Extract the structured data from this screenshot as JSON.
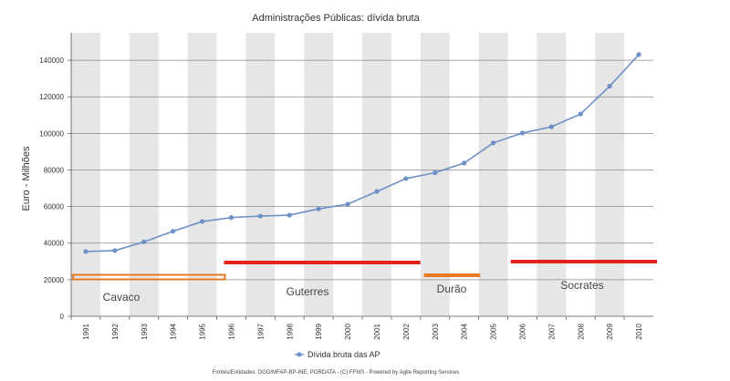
{
  "chart_data": {
    "type": "line",
    "title": "Administrações Públicas: dívida bruta",
    "xlabel": "",
    "ylabel": "Euro - Milhões",
    "ylim": [
      0,
      155000
    ],
    "yticks": [
      0,
      20000,
      40000,
      60000,
      80000,
      100000,
      120000,
      140000
    ],
    "ytick_labels": [
      "0",
      "20000",
      "40000",
      "60000",
      "80000",
      "100000",
      "120000",
      "140000"
    ],
    "grid": true,
    "legend_position": "bottom-center",
    "categories": [
      "1991",
      "1992",
      "1993",
      "1994",
      "1995",
      "1996",
      "1997",
      "1998",
      "1999",
      "2000",
      "2001",
      "2002",
      "2003",
      "2004",
      "2005",
      "2006",
      "2007",
      "2008",
      "2009",
      "2010"
    ],
    "series": [
      {
        "name": "Dívida bruta das AP",
        "color": "#6f8fc7",
        "values": [
          35400,
          35900,
          40700,
          46500,
          51800,
          54000,
          54800,
          55300,
          58700,
          61300,
          68200,
          75300,
          78500,
          83800,
          94800,
          100200,
          103600,
          110600,
          125800,
          143100
        ]
      }
    ],
    "annotations": [
      {
        "label": "Cavaco",
        "start": "1991",
        "end": "1996",
        "color": "#e8791e",
        "style": "outline"
      },
      {
        "label": "Guterres",
        "start": "1996",
        "end": "2002",
        "color": "#e0231c",
        "style": "solid"
      },
      {
        "label": "Durão",
        "start": "2002",
        "end": "2005",
        "color": "#e8791e",
        "style": "solid"
      },
      {
        "label": "Socrates",
        "start": "2005",
        "end": "2010",
        "color": "#e0231c",
        "style": "solid"
      }
    ],
    "footer": "Fontes/Entidades: DGO/MFAP-BP-INE, PORDATA - (C) FFMS - Powered by Agile Reporting Services"
  }
}
